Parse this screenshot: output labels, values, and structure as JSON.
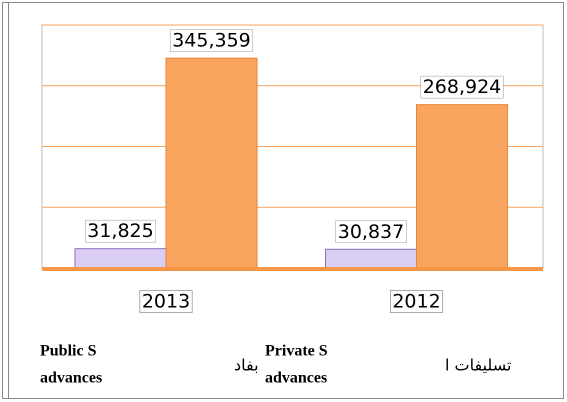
{
  "chart_data": {
    "type": "bar",
    "categories": [
      "2013",
      "2012"
    ],
    "series": [
      {
        "color": "#d9cdf2",
        "values": [
          31825,
          30837
        ],
        "value_labels": [
          "31,825",
          "30,837"
        ]
      },
      {
        "color": "#f9a560",
        "values": [
          345359,
          268924
        ],
        "value_labels": [
          "345,359",
          "268,924"
        ]
      }
    ],
    "ylim": [
      0,
      400000
    ],
    "yticks": [
      0,
      100000,
      200000,
      300000,
      400000
    ],
    "grid": true,
    "legend": [
      "Public S",
      "advances",
      "بفاد",
      "Private S",
      "advances",
      "تسليفات ا"
    ]
  }
}
